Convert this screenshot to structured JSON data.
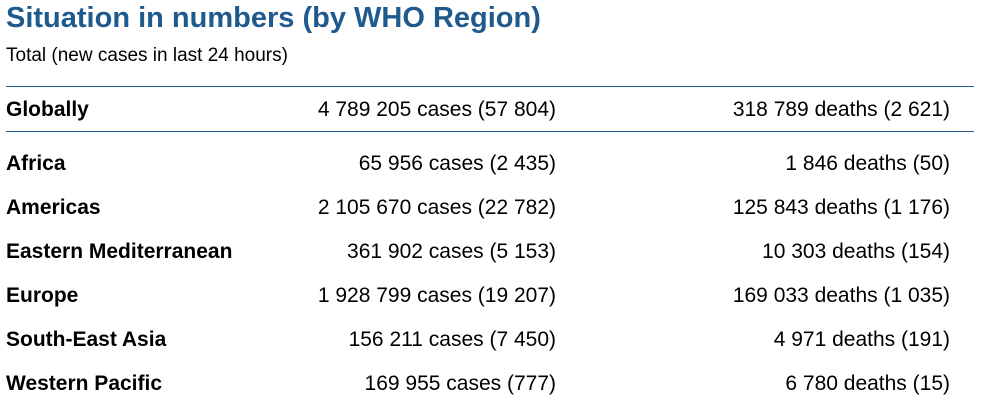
{
  "title": "Situation in numbers (by WHO Region)",
  "subtitle": "Total (new cases in last 24 hours)",
  "global": {
    "region": "Globally",
    "cases": "4 789 205 cases (57 804)",
    "deaths": "318 789 deaths (2 621)"
  },
  "regions": [
    {
      "region": "Africa",
      "cases": "65 956 cases (2 435)",
      "deaths": "1 846 deaths (50)"
    },
    {
      "region": "Americas",
      "cases": "2 105 670 cases (22 782)",
      "deaths": "125 843 deaths (1 176)"
    },
    {
      "region": "Eastern Mediterranean",
      "cases": "361 902 cases (5 153)",
      "deaths": "10 303 deaths (154)"
    },
    {
      "region": "Europe",
      "cases": "1 928 799 cases (19 207)",
      "deaths": "169 033 deaths (1 035)"
    },
    {
      "region": "South-East Asia",
      "cases": "156 211 cases (7 450)",
      "deaths": "4 971 deaths (191)"
    },
    {
      "region": "Western Pacific",
      "cases": "169 955 cases (777)",
      "deaths": "6 780 deaths (15)"
    }
  ],
  "colors": {
    "title": "#1f5a8e",
    "rule": "#1f5a8e",
    "text": "#000000"
  }
}
